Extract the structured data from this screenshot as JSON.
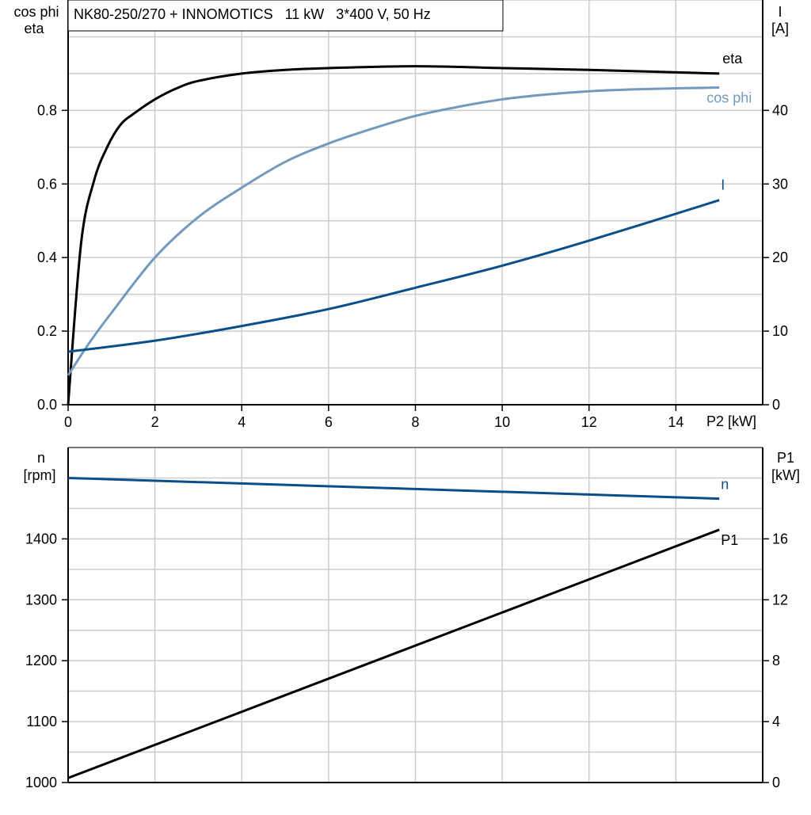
{
  "chart_data": [
    {
      "type": "line",
      "title": "NK80-250/270 + INNOMOTICS   11 kW   3*400 V, 50 Hz",
      "xlabel": "P2 [kW]",
      "ylabel_left": [
        "cos phi",
        "eta"
      ],
      "ylabel_right": [
        "I",
        "[A]"
      ],
      "xlim": [
        0,
        16
      ],
      "ylim_left": [
        0,
        1.1
      ],
      "ylim_right": [
        0,
        55
      ],
      "x_ticks": [
        "0",
        "2",
        "4",
        "6",
        "8",
        "10",
        "12",
        "14"
      ],
      "y_ticks_left": [
        "0.0",
        "0.2",
        "0.4",
        "0.6",
        "0.8"
      ],
      "y_ticks_right": [
        "0",
        "10",
        "20",
        "30",
        "40"
      ],
      "grid": true,
      "series": [
        {
          "name": "eta",
          "axis": "left",
          "color": "#000000",
          "x": [
            0,
            0.3,
            0.6,
            0.9,
            1.2,
            1.5,
            2,
            2.5,
            3,
            4,
            5,
            6,
            8,
            10,
            12,
            15
          ],
          "y": [
            0,
            0.44,
            0.61,
            0.7,
            0.76,
            0.79,
            0.83,
            0.86,
            0.88,
            0.9,
            0.91,
            0.915,
            0.92,
            0.915,
            0.91,
            0.9
          ]
        },
        {
          "name": "cos phi",
          "axis": "left",
          "color": "#7399BB",
          "x": [
            0,
            0.5,
            1,
            2,
            3,
            4,
            5,
            6,
            7,
            8,
            9,
            10,
            11,
            12,
            13,
            14,
            15
          ],
          "y": [
            0.08,
            0.17,
            0.25,
            0.4,
            0.51,
            0.59,
            0.66,
            0.71,
            0.75,
            0.785,
            0.81,
            0.83,
            0.843,
            0.852,
            0.857,
            0.86,
            0.862
          ]
        },
        {
          "name": "I",
          "axis": "right",
          "color": "#0B4F8A",
          "x": [
            0,
            2,
            4,
            6,
            8,
            10,
            12,
            15
          ],
          "y": [
            7.2,
            8.7,
            10.7,
            13.0,
            15.9,
            18.9,
            22.3,
            27.8
          ]
        }
      ]
    },
    {
      "type": "line",
      "xlabel": "",
      "ylabel_left": [
        "n",
        "[rpm]"
      ],
      "ylabel_right": [
        "P1",
        "[kW]"
      ],
      "xlim": [
        0,
        16
      ],
      "ylim_left": [
        1000,
        1550
      ],
      "ylim_right": [
        0,
        22
      ],
      "y_ticks_left": [
        "1000",
        "1100",
        "1200",
        "1300",
        "1400"
      ],
      "y_ticks_right": [
        "0",
        "4",
        "8",
        "12",
        "16"
      ],
      "grid": true,
      "series": [
        {
          "name": "n",
          "axis": "left",
          "color": "#0B4F8A",
          "x": [
            0,
            15
          ],
          "y": [
            1500,
            1466
          ]
        },
        {
          "name": "P1",
          "axis": "right",
          "color": "#000000",
          "x": [
            0,
            15
          ],
          "y": [
            0.3,
            16.6
          ]
        }
      ]
    }
  ]
}
